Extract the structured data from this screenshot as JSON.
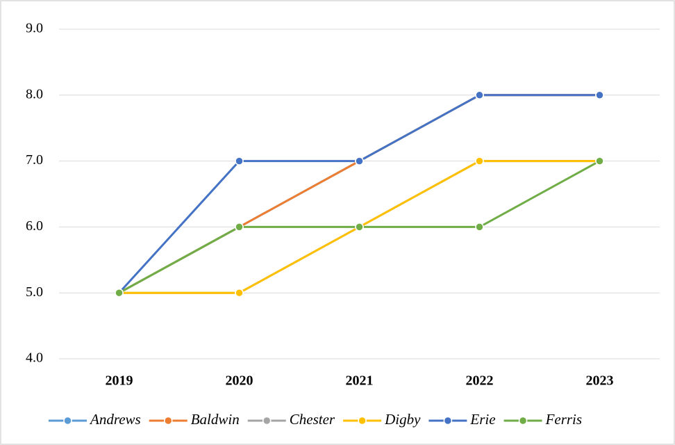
{
  "chart_data": {
    "type": "line",
    "categories": [
      "2019",
      "2020",
      "2021",
      "2022",
      "2023"
    ],
    "series": [
      {
        "name": "Andrews",
        "color": "#5b9bd5",
        "values": [
          5,
          6,
          7,
          8,
          8
        ]
      },
      {
        "name": "Baldwin",
        "color": "#ed7d31",
        "values": [
          5,
          6,
          7,
          8,
          8
        ]
      },
      {
        "name": "Chester",
        "color": "#a5a5a5",
        "values": [
          5,
          5,
          6,
          7,
          7
        ]
      },
      {
        "name": "Digby",
        "color": "#ffc000",
        "values": [
          5,
          5,
          6,
          7,
          7
        ]
      },
      {
        "name": "Erie",
        "color": "#4472c4",
        "values": [
          5,
          7,
          7,
          8,
          8
        ]
      },
      {
        "name": "Ferris",
        "color": "#70ad47",
        "values": [
          5,
          6,
          6,
          6,
          7
        ]
      }
    ],
    "ylim": [
      4,
      9
    ],
    "yticks": [
      {
        "value": 4,
        "label": "4.0"
      },
      {
        "value": 5,
        "label": "5.0"
      },
      {
        "value": 6,
        "label": "6.0"
      },
      {
        "value": 7,
        "label": "7.0"
      },
      {
        "value": 8,
        "label": "8.0"
      },
      {
        "value": 9,
        "label": "9.0"
      }
    ],
    "grid": true,
    "legend": "bottom"
  }
}
